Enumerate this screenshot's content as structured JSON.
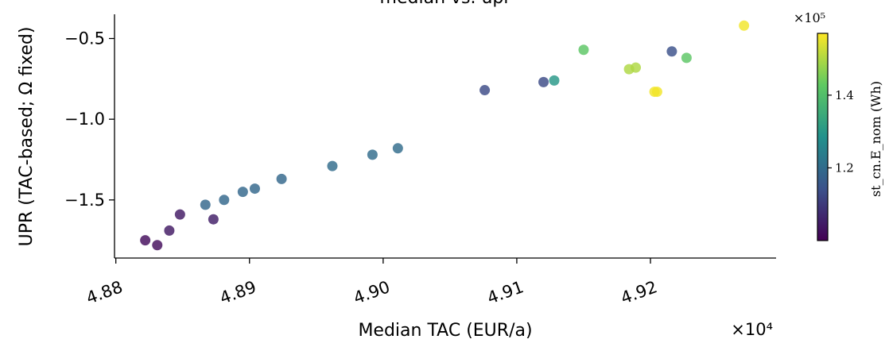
{
  "chart_data": {
    "type": "scatter",
    "title": "median vs. upr",
    "xlabel": "Median TAC (EUR/a)",
    "ylabel": "UPR (TAC-based; Ω fixed)",
    "x_offset_label": "×10⁴",
    "x_scale": 10000,
    "xlim": [
      4.8799,
      4.9294
    ],
    "ylim": [
      -1.86,
      -0.35
    ],
    "x_ticks": [
      4.88,
      4.89,
      4.9,
      4.91,
      4.92
    ],
    "x_tick_labels": [
      "4.88",
      "4.89",
      "4.90",
      "4.91",
      "4.92"
    ],
    "y_ticks": [
      -0.5,
      -1.0,
      -1.5
    ],
    "y_tick_labels": [
      "−0.5",
      "−1.0",
      "−1.5"
    ],
    "grid": false,
    "colorbar": {
      "label": "st_cn.E_nom (Wh)",
      "offset_label": "×10⁵",
      "range": [
        1.0,
        1.57
      ],
      "ticks": [
        1.2,
        1.4
      ],
      "tick_labels": [
        "1.2",
        "1.4"
      ],
      "colormap": [
        "#440154",
        "#3b528b",
        "#21918c",
        "#5ec962",
        "#fde725"
      ]
    },
    "points": [
      {
        "x": 4.8822,
        "y": -1.75,
        "c": 1.02
      },
      {
        "x": 4.8831,
        "y": -1.78,
        "c": 1.02
      },
      {
        "x": 4.884,
        "y": -1.69,
        "c": 1.04
      },
      {
        "x": 4.8848,
        "y": -1.59,
        "c": 1.04
      },
      {
        "x": 4.8873,
        "y": -1.62,
        "c": 1.05
      },
      {
        "x": 4.8867,
        "y": -1.53,
        "c": 1.19
      },
      {
        "x": 4.8881,
        "y": -1.5,
        "c": 1.19
      },
      {
        "x": 4.8895,
        "y": -1.45,
        "c": 1.19
      },
      {
        "x": 4.8904,
        "y": -1.43,
        "c": 1.19
      },
      {
        "x": 4.8924,
        "y": -1.37,
        "c": 1.19
      },
      {
        "x": 4.8962,
        "y": -1.29,
        "c": 1.2
      },
      {
        "x": 4.8992,
        "y": -1.22,
        "c": 1.2
      },
      {
        "x": 4.9011,
        "y": -1.18,
        "c": 1.2
      },
      {
        "x": 4.9076,
        "y": -0.82,
        "c": 1.13
      },
      {
        "x": 4.912,
        "y": -0.77,
        "c": 1.13
      },
      {
        "x": 4.9216,
        "y": -0.58,
        "c": 1.14
      },
      {
        "x": 4.9128,
        "y": -0.76,
        "c": 1.3
      },
      {
        "x": 4.915,
        "y": -0.57,
        "c": 1.42
      },
      {
        "x": 4.9227,
        "y": -0.62,
        "c": 1.42
      },
      {
        "x": 4.9184,
        "y": -0.69,
        "c": 1.5
      },
      {
        "x": 4.9189,
        "y": -0.68,
        "c": 1.5
      },
      {
        "x": 4.9203,
        "y": -0.83,
        "c": 1.56
      },
      {
        "x": 4.9205,
        "y": -0.83,
        "c": 1.56
      },
      {
        "x": 4.927,
        "y": -0.42,
        "c": 1.56
      }
    ]
  }
}
